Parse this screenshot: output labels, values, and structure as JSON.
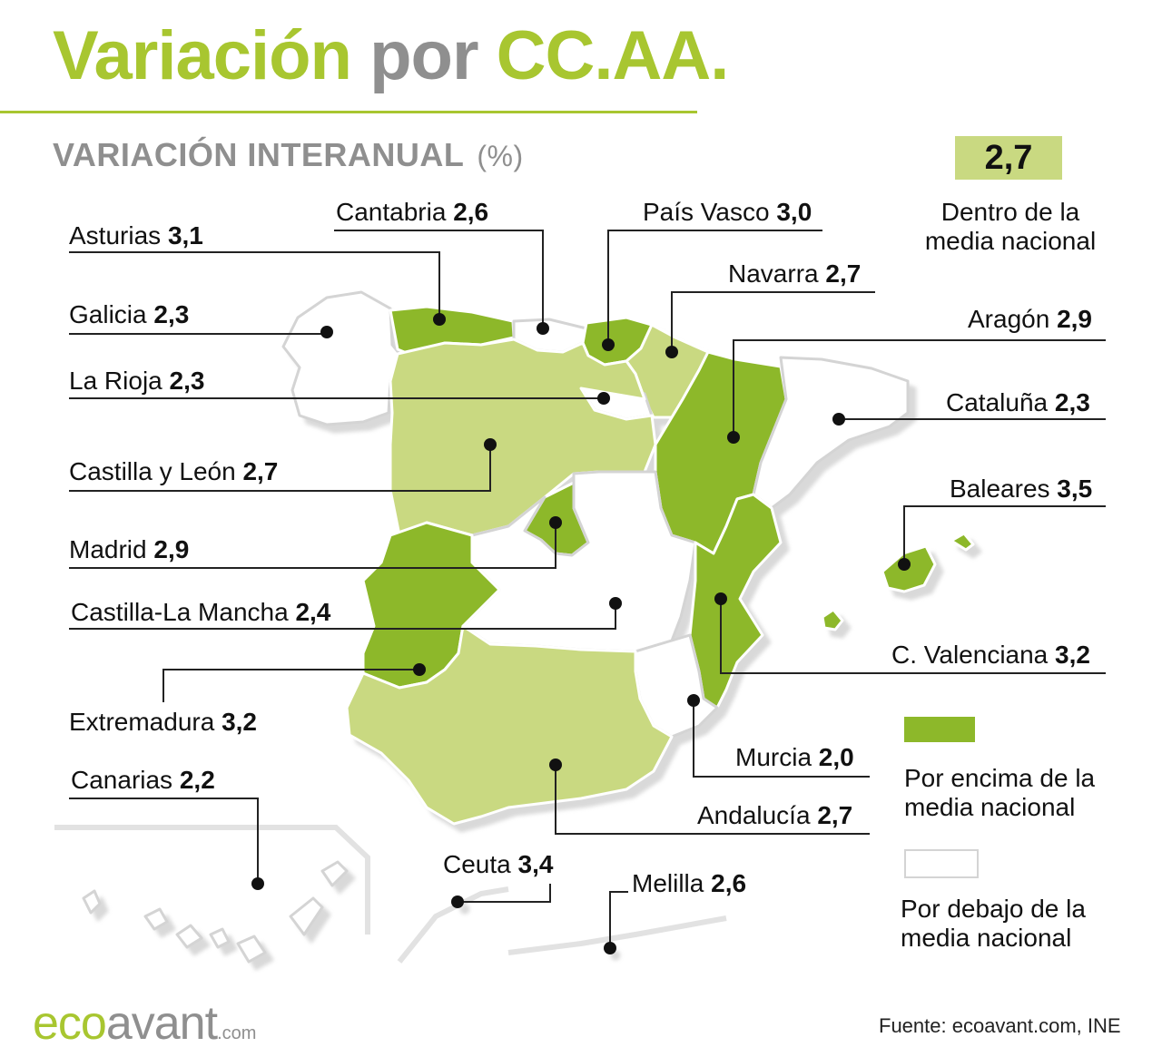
{
  "title": {
    "part1": "Variación",
    "part2": "por",
    "part3": "CC.AA."
  },
  "subtitle": {
    "main": "VARIACIÓN INTERANUAL",
    "unit": "(%)"
  },
  "national_average": {
    "value": "2,7",
    "label_line1": "Dentro de la",
    "label_line2": "media nacional"
  },
  "legend": {
    "above": {
      "line1": "Por encima de la",
      "line2": "media nacional",
      "color": "#8db82a"
    },
    "below": {
      "line1": "Por debajo de la",
      "line2": "media nacional",
      "color": "#ffffff"
    },
    "within_color": "#c9d981"
  },
  "regions": {
    "asturias": {
      "name": "Asturias",
      "value": "3,1",
      "category": "above"
    },
    "galicia": {
      "name": "Galicia",
      "value": "2,3",
      "category": "below"
    },
    "la_rioja": {
      "name": "La Rioja",
      "value": "2,3",
      "category": "below"
    },
    "castilla_leon": {
      "name": "Castilla y León",
      "value": "2,7",
      "category": "within"
    },
    "madrid": {
      "name": "Madrid",
      "value": "2,9",
      "category": "above"
    },
    "castilla_la_mancha": {
      "name": "Castilla-La Mancha",
      "value": "2,4",
      "category": "below"
    },
    "extremadura": {
      "name": "Extremadura",
      "value": "3,2",
      "category": "above"
    },
    "canarias": {
      "name": "Canarias",
      "value": "2,2",
      "category": "below"
    },
    "cantabria": {
      "name": "Cantabria",
      "value": "2,6",
      "category": "below"
    },
    "pais_vasco": {
      "name": "País Vasco",
      "value": "3,0",
      "category": "above"
    },
    "navarra": {
      "name": "Navarra",
      "value": "2,7",
      "category": "within"
    },
    "aragon": {
      "name": "Aragón",
      "value": "2,9",
      "category": "above"
    },
    "cataluna": {
      "name": "Cataluña",
      "value": "2,3",
      "category": "below"
    },
    "baleares": {
      "name": "Baleares",
      "value": "3,5",
      "category": "above"
    },
    "valenciana": {
      "name": "C. Valenciana",
      "value": "3,2",
      "category": "above"
    },
    "murcia": {
      "name": "Murcia",
      "value": "2,0",
      "category": "below"
    },
    "andalucia": {
      "name": "Andalucía",
      "value": "2,7",
      "category": "within"
    },
    "ceuta": {
      "name": "Ceuta",
      "value": "3,4",
      "category": "above"
    },
    "melilla": {
      "name": "Melilla",
      "value": "2,6",
      "category": "below"
    }
  },
  "brand": {
    "eco": "eco",
    "avant": "avant",
    "com": ".com"
  },
  "source": "Fuente: ecoavant.com, INE"
}
